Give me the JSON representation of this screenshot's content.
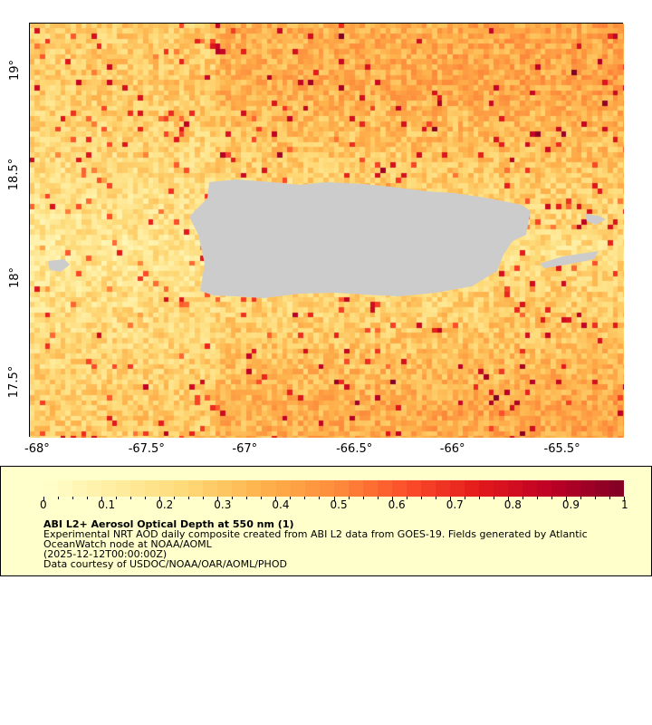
{
  "map": {
    "lon_range": [
      -68.04,
      -65.17
    ],
    "lat_range": [
      17.23,
      19.23
    ],
    "lon_ticks": [
      "-68°",
      "-67.5°",
      "-67°",
      "-66.5°",
      "-66°",
      "-65.5°"
    ],
    "lat_ticks": [
      "19°",
      "18.5°",
      "18°",
      "17.5°"
    ],
    "land_color": "#cccccc",
    "missing_color": "#8a8a8a"
  },
  "colorbar": {
    "min": 0,
    "max": 1,
    "tick_labels": [
      "0",
      "0.1",
      "0.2",
      "0.3",
      "0.4",
      "0.5",
      "0.6",
      "0.7",
      "0.8",
      "0.9",
      "1"
    ],
    "colors": [
      "#ffffcc",
      "#ffeda0",
      "#fed976",
      "#feb24c",
      "#fd8d3c",
      "#fc4e2a",
      "#e31a1c",
      "#bd0026",
      "#800026"
    ],
    "segments": 40
  },
  "legend": {
    "title": "ABI L2+ Aerosol Optical Depth at 550 nm (1)",
    "line1": "Experimental NRT AOD daily composite created from ABI L2 data from GOES-19. Fields generated by Atlantic",
    "line2": "OceanWatch node at NOAA/AOML",
    "line3": "(2025-12-12T00:00:00Z)",
    "line4": "Data courtesy of USDOC/NOAA/OAR/AOML/PHOD"
  }
}
